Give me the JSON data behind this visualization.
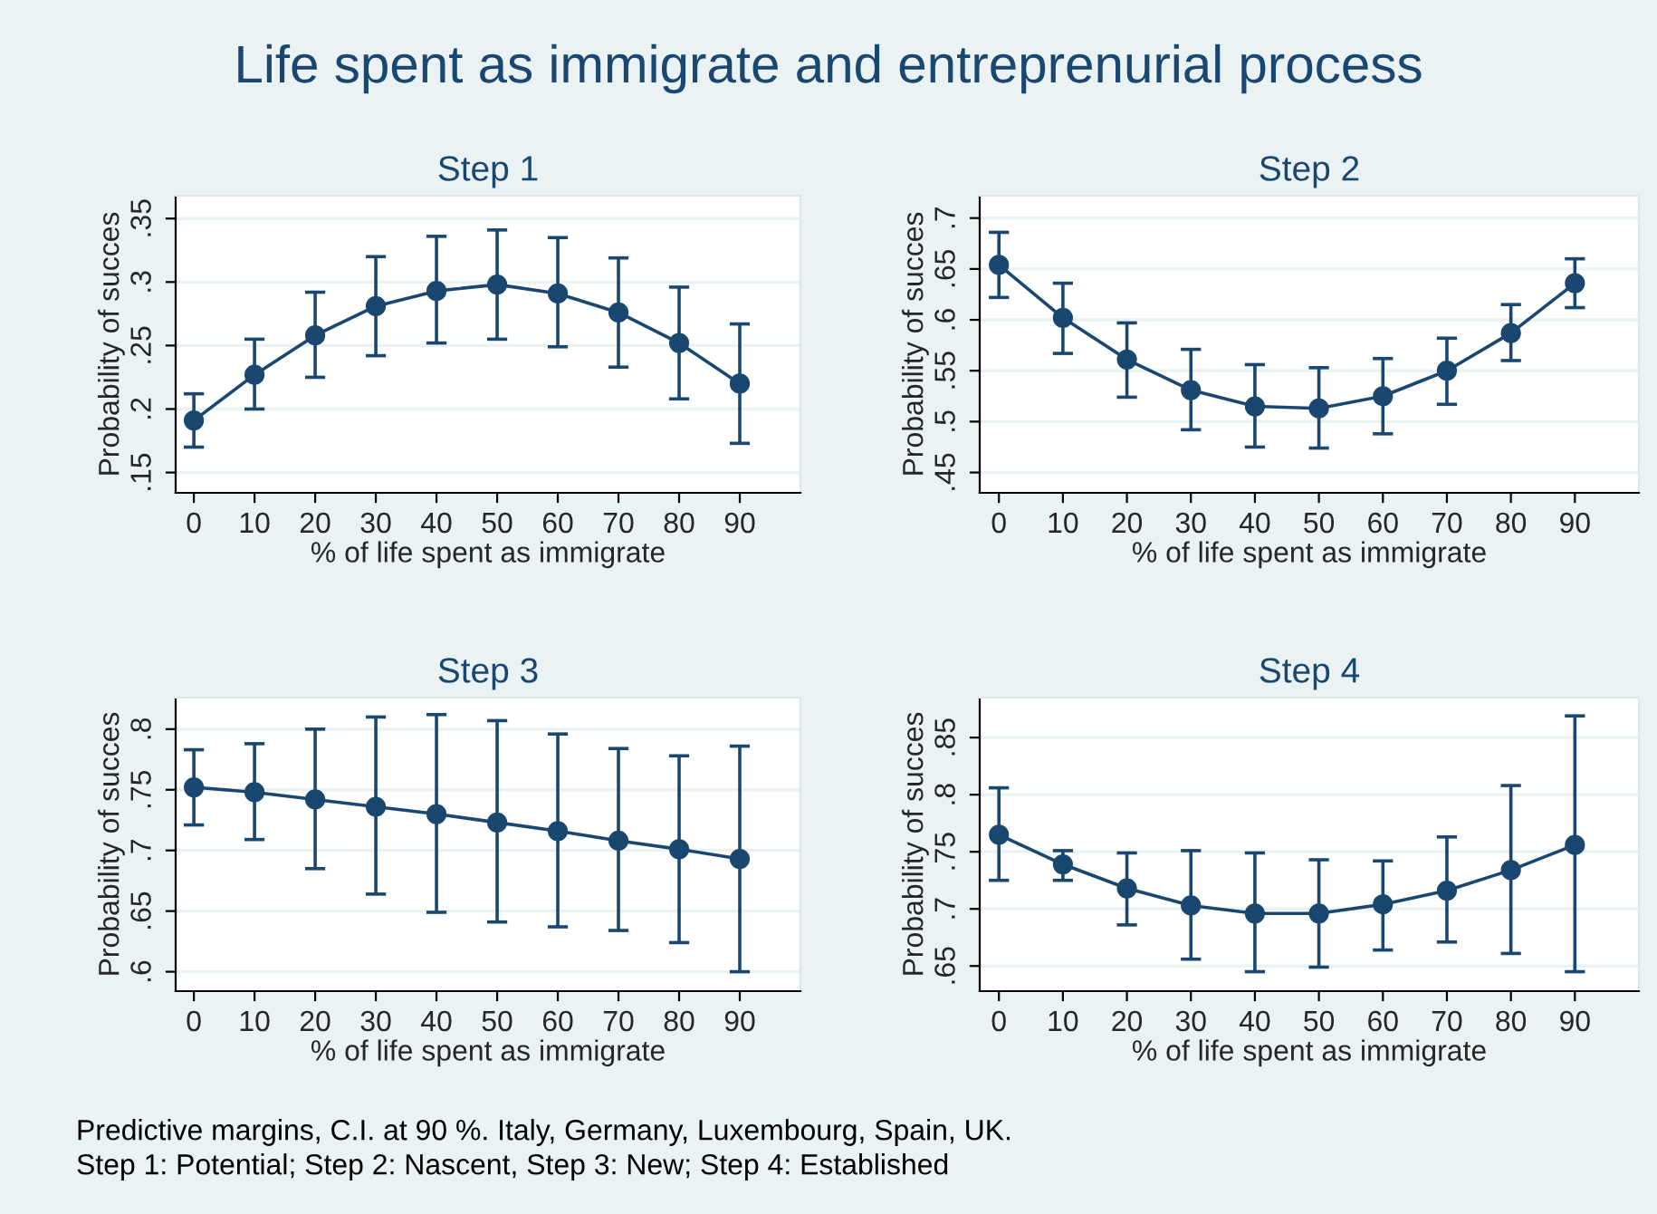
{
  "chart_data": [
    {
      "type": "other",
      "title": "Life spent as immigrate and entreprenurial process",
      "annotations": [
        "Predictive margins, C.I. at 90 %. Italy, Germany, Luxembourg, Spain, UK.",
        "Step 1: Potential; Step 2: Nascent, Step 3: New; Step 4: Established"
      ]
    },
    {
      "type": "line",
      "title": "Step 1",
      "xlabel": "% of life spent as immigrate",
      "ylabel": "Probability of succes",
      "x": [
        0,
        10,
        20,
        30,
        40,
        50,
        60,
        70,
        80,
        90
      ],
      "xlim": [
        -3,
        100
      ],
      "xticks": [
        0,
        10,
        20,
        30,
        40,
        50,
        60,
        70,
        80,
        90
      ],
      "ylim": [
        0.134,
        0.368
      ],
      "yticks": [
        {
          "value": 0.15,
          "label": ".15"
        },
        {
          "value": 0.2,
          "label": ".2"
        },
        {
          "value": 0.25,
          "label": ".25"
        },
        {
          "value": 0.3,
          "label": ".3"
        },
        {
          "value": 0.35,
          "label": ".35"
        }
      ],
      "grid": "y",
      "marker": "circle",
      "line_style": "solid",
      "series": [
        {
          "color": "#1a476f",
          "values": [
            0.191,
            0.227,
            0.258,
            0.281,
            0.293,
            0.298,
            0.291,
            0.276,
            0.252,
            0.22
          ],
          "errors": [
            [
              0.17,
              0.212
            ],
            [
              0.2,
              0.255
            ],
            [
              0.225,
              0.292
            ],
            [
              0.242,
              0.32
            ],
            [
              0.252,
              0.336
            ],
            [
              0.255,
              0.341
            ],
            [
              0.249,
              0.335
            ],
            [
              0.233,
              0.319
            ],
            [
              0.208,
              0.296
            ],
            [
              0.173,
              0.267
            ]
          ]
        }
      ]
    },
    {
      "type": "line",
      "title": "Step 2",
      "xlabel": "% of life spent as immigrate",
      "ylabel": "Probability of succes",
      "x": [
        0,
        10,
        20,
        30,
        40,
        50,
        60,
        70,
        80,
        90
      ],
      "xlim": [
        -3,
        100
      ],
      "xticks": [
        0,
        10,
        20,
        30,
        40,
        50,
        60,
        70,
        80,
        90
      ],
      "ylim": [
        0.43,
        0.722
      ],
      "yticks": [
        {
          "value": 0.45,
          "label": ".45"
        },
        {
          "value": 0.5,
          "label": ".5"
        },
        {
          "value": 0.55,
          "label": ".55"
        },
        {
          "value": 0.6,
          "label": ".6"
        },
        {
          "value": 0.65,
          "label": ".65"
        },
        {
          "value": 0.7,
          "label": ".7"
        }
      ],
      "grid": "y",
      "marker": "circle",
      "line_style": "solid",
      "series": [
        {
          "color": "#1a476f",
          "values": [
            0.654,
            0.602,
            0.561,
            0.531,
            0.515,
            0.513,
            0.525,
            0.55,
            0.587,
            0.636
          ],
          "errors": [
            [
              0.622,
              0.686
            ],
            [
              0.567,
              0.636
            ],
            [
              0.524,
              0.597
            ],
            [
              0.492,
              0.571
            ],
            [
              0.475,
              0.556
            ],
            [
              0.474,
              0.553
            ],
            [
              0.488,
              0.562
            ],
            [
              0.517,
              0.582
            ],
            [
              0.56,
              0.615
            ],
            [
              0.612,
              0.66
            ]
          ]
        }
      ]
    },
    {
      "type": "line",
      "title": "Step 3",
      "xlabel": "% of life spent as immigrate",
      "ylabel": "Probability of succes",
      "x": [
        0,
        10,
        20,
        30,
        40,
        50,
        60,
        70,
        80,
        90
      ],
      "xlim": [
        -3,
        100
      ],
      "xticks": [
        0,
        10,
        20,
        30,
        40,
        50,
        60,
        70,
        80,
        90
      ],
      "ylim": [
        0.584,
        0.826
      ],
      "yticks": [
        {
          "value": 0.6,
          "label": ".6"
        },
        {
          "value": 0.65,
          "label": ".65"
        },
        {
          "value": 0.7,
          "label": ".7"
        },
        {
          "value": 0.75,
          "label": ".75"
        },
        {
          "value": 0.8,
          "label": ".8"
        }
      ],
      "grid": "y",
      "marker": "circle",
      "line_style": "solid",
      "series": [
        {
          "color": "#1a476f",
          "values": [
            0.752,
            0.748,
            0.742,
            0.736,
            0.73,
            0.723,
            0.716,
            0.708,
            0.701,
            0.693
          ],
          "errors": [
            [
              0.721,
              0.783
            ],
            [
              0.709,
              0.788
            ],
            [
              0.685,
              0.8
            ],
            [
              0.664,
              0.81
            ],
            [
              0.649,
              0.812
            ],
            [
              0.641,
              0.807
            ],
            [
              0.637,
              0.796
            ],
            [
              0.634,
              0.784
            ],
            [
              0.624,
              0.778
            ],
            [
              0.6,
              0.786
            ]
          ]
        }
      ]
    },
    {
      "type": "line",
      "title": "Step 4",
      "xlabel": "% of life spent as immigrate",
      "ylabel": "Probability of succes",
      "x": [
        0,
        10,
        20,
        30,
        40,
        50,
        60,
        70,
        80,
        90
      ],
      "xlim": [
        -3,
        100
      ],
      "xticks": [
        0,
        10,
        20,
        30,
        40,
        50,
        60,
        70,
        80,
        90
      ],
      "ylim": [
        0.628,
        0.885
      ],
      "yticks": [
        {
          "value": 0.65,
          "label": ".65"
        },
        {
          "value": 0.7,
          "label": ".7"
        },
        {
          "value": 0.75,
          "label": ".75"
        },
        {
          "value": 0.8,
          "label": ".8"
        },
        {
          "value": 0.85,
          "label": ".85"
        }
      ],
      "grid": "y",
      "marker": "circle",
      "line_style": "solid",
      "series": [
        {
          "color": "#1a476f",
          "values": [
            0.765,
            0.739,
            0.718,
            0.703,
            0.696,
            0.696,
            0.704,
            0.716,
            0.734,
            0.756
          ],
          "errors": [
            [
              0.725,
              0.806
            ],
            [
              0.725,
              0.751
            ],
            [
              0.686,
              0.749
            ],
            [
              0.656,
              0.751
            ],
            [
              0.645,
              0.749
            ],
            [
              0.649,
              0.743
            ],
            [
              0.664,
              0.742
            ],
            [
              0.671,
              0.763
            ],
            [
              0.661,
              0.808
            ],
            [
              0.645,
              0.869
            ]
          ]
        }
      ]
    }
  ]
}
